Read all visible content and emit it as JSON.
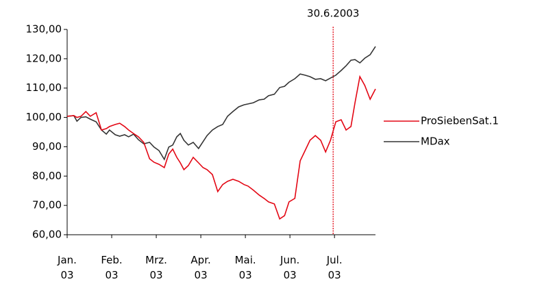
{
  "chart_data": {
    "type": "line",
    "x": [
      0,
      0.15,
      0.22,
      0.31,
      0.42,
      0.52,
      0.65,
      0.77,
      0.88,
      0.95,
      1.08,
      1.18,
      1.29,
      1.38,
      1.49,
      1.6,
      1.72,
      1.85,
      1.95,
      2.06,
      2.18,
      2.28,
      2.37,
      2.46,
      2.54,
      2.62,
      2.72,
      2.83,
      2.95,
      3.05,
      3.14,
      3.26,
      3.38,
      3.49,
      3.6,
      3.72,
      3.85,
      3.97,
      4.06,
      4.18,
      4.31,
      4.42,
      4.52,
      4.65,
      4.77,
      4.88,
      4.98,
      5.11,
      5.23,
      5.34,
      5.45,
      5.57,
      5.69,
      5.8,
      5.91,
      6.03,
      6.15,
      6.26,
      6.37,
      6.46,
      6.57,
      6.68,
      6.8,
      6.92
    ],
    "series": [
      {
        "name": "ProSiebenSat.1",
        "color": "#e30613",
        "values": [
          100.4,
          100.6,
          100,
          100.4,
          102,
          100.4,
          101.6,
          95.7,
          96.2,
          96.9,
          97.6,
          98,
          96.9,
          95.7,
          94.5,
          93.4,
          91.5,
          85.9,
          84.7,
          84,
          82.9,
          87.5,
          89.2,
          86.4,
          84.5,
          82.2,
          83.6,
          86.4,
          84.5,
          82.9,
          82.2,
          80.5,
          74.7,
          77.1,
          78.2,
          78.9,
          78.2,
          77.1,
          76.6,
          75.2,
          73.5,
          72.4,
          71.2,
          70.5,
          65.4,
          66.5,
          71.2,
          72.4,
          85.2,
          88.7,
          92.2,
          93.8,
          92.2,
          88.2,
          92.2,
          98.5,
          99.2,
          95.7,
          96.9,
          105,
          113.9,
          110.9,
          106.2,
          109.7
        ]
      },
      {
        "name": "MDax",
        "color": "#333333",
        "values": [
          100.4,
          100.6,
          98.7,
          100,
          100.2,
          99.4,
          98.5,
          95.7,
          94.3,
          95.7,
          94.1,
          93.6,
          94.1,
          93.4,
          94.3,
          92.4,
          91,
          91.5,
          89.9,
          88.7,
          85.7,
          89.9,
          90.6,
          93.4,
          94.5,
          92.2,
          90.6,
          91.5,
          89.4,
          91.7,
          93.8,
          95.7,
          96.9,
          97.6,
          100.4,
          102,
          103.6,
          104.3,
          104.6,
          105,
          106,
          106.2,
          107.4,
          107.9,
          110.2,
          110.6,
          112,
          113.2,
          114.8,
          114.4,
          113.9,
          113,
          113.2,
          112.5,
          113.4,
          114.4,
          116,
          117.6,
          119.5,
          119.7,
          118.6,
          120.2,
          121.4,
          124.2
        ]
      }
    ],
    "xlim": [
      0,
      6.92
    ],
    "xticks": [
      {
        "value": 0,
        "label": "Jan. 03"
      },
      {
        "value": 1,
        "label": "Feb. 03"
      },
      {
        "value": 2,
        "label": "Mrz. 03"
      },
      {
        "value": 3,
        "label": "Apr. 03"
      },
      {
        "value": 4,
        "label": "Mai. 03"
      },
      {
        "value": 5,
        "label": "Jun. 03"
      },
      {
        "value": 6,
        "label": "Jul. 03"
      }
    ],
    "ylim": [
      60,
      130
    ],
    "yticks": [
      {
        "value": 60,
        "label": "60,00"
      },
      {
        "value": 70,
        "label": "70,00"
      },
      {
        "value": 80,
        "label": "80,00"
      },
      {
        "value": 90,
        "label": "90,00"
      },
      {
        "value": 100,
        "label": "100,00"
      },
      {
        "value": 110,
        "label": "110,00"
      },
      {
        "value": 120,
        "label": "120,00"
      },
      {
        "value": 130,
        "label": "130,00"
      }
    ],
    "annotation": {
      "x": 5.97,
      "label": "30.6.2003",
      "color": "#e30613"
    },
    "legend": "right",
    "grid": false
  }
}
